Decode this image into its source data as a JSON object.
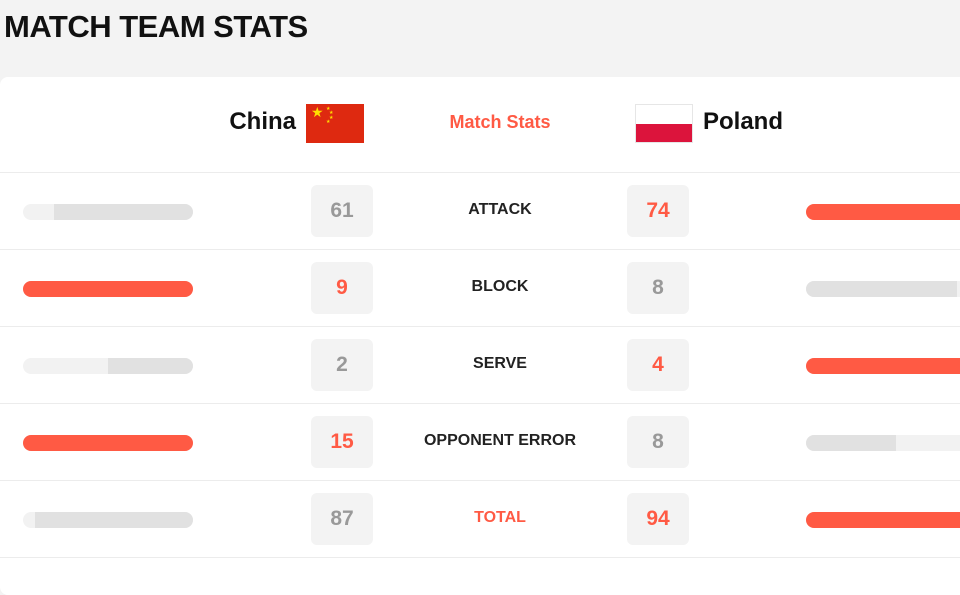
{
  "page": {
    "title": "MATCH TEAM STATS"
  },
  "header": {
    "home_team": "China",
    "away_team": "Poland",
    "center_label": "Match Stats"
  },
  "colors": {
    "accent": "#ff5a44",
    "neutral_bar": "#e1e1e1",
    "track": "#f2f2f2"
  },
  "stats": [
    {
      "label": "ATTACK",
      "home": "61",
      "away": "74",
      "home_share": 0.82,
      "away_share": 1.0,
      "winner": "away"
    },
    {
      "label": "BLOCK",
      "home": "9",
      "away": "8",
      "home_share": 1.0,
      "away_share": 0.89,
      "winner": "home"
    },
    {
      "label": "SERVE",
      "home": "2",
      "away": "4",
      "home_share": 0.5,
      "away_share": 1.0,
      "winner": "away"
    },
    {
      "label": "OPPONENT ERROR",
      "home": "15",
      "away": "8",
      "home_share": 1.0,
      "away_share": 0.53,
      "winner": "home"
    },
    {
      "label": "TOTAL",
      "home": "87",
      "away": "94",
      "home_share": 0.93,
      "away_share": 1.0,
      "winner": "away",
      "is_total": true
    }
  ]
}
